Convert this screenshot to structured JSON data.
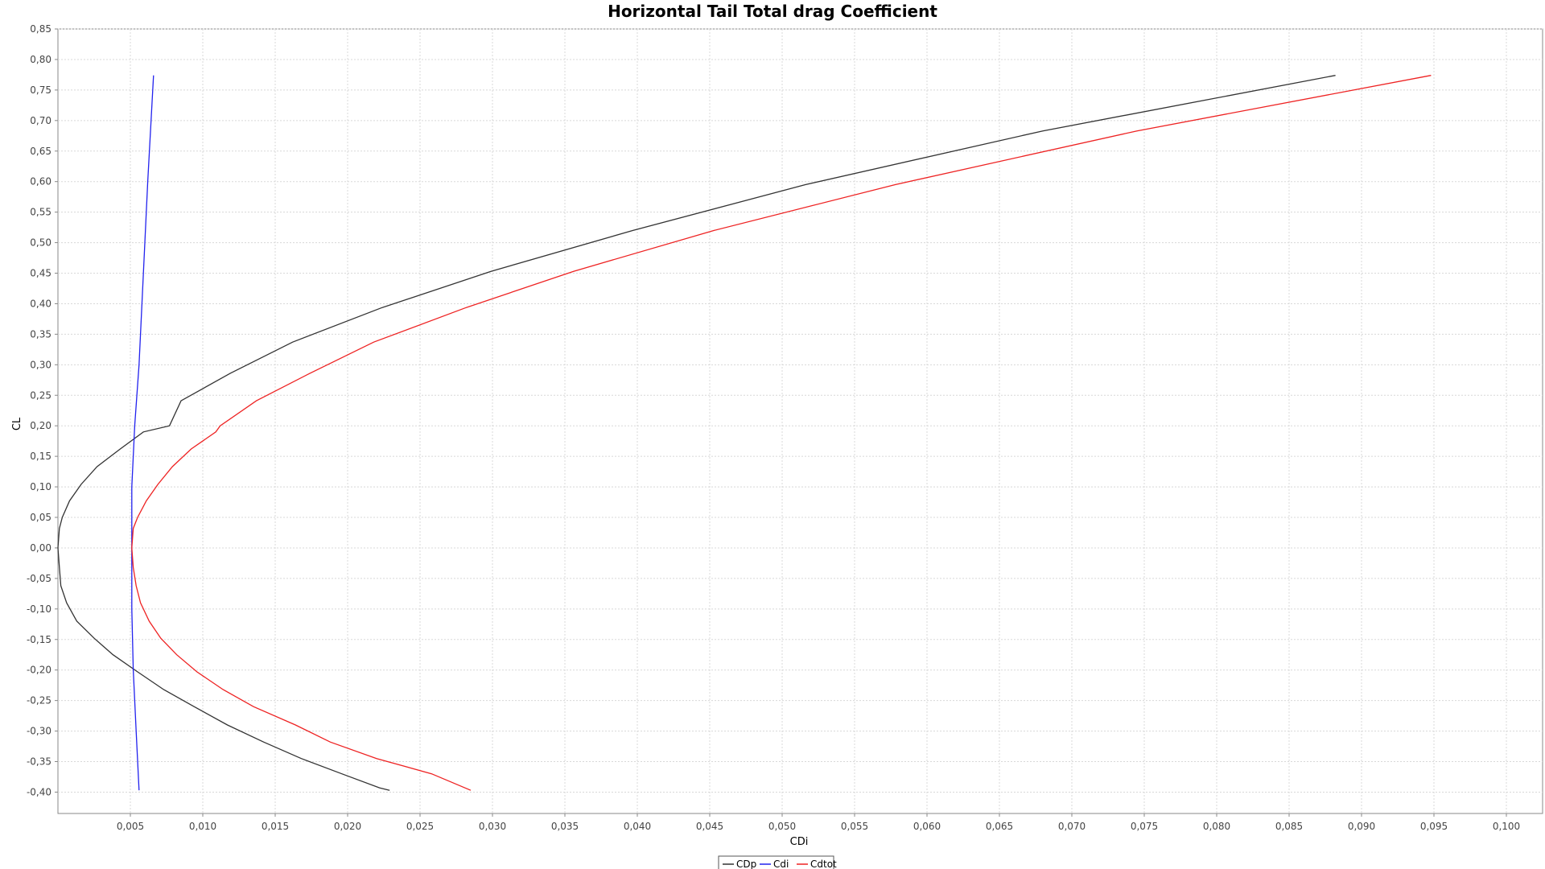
{
  "chart_data": {
    "type": "line",
    "title": "Horizontal Tail Total drag Coefficient",
    "xlabel": "CDi",
    "ylabel": "CL",
    "xlim": [
      0.0,
      0.1025
    ],
    "ylim": [
      -0.435,
      0.85
    ],
    "x_ticks": [
      "0,005",
      "0,010",
      "0,015",
      "0,020",
      "0,025",
      "0,030",
      "0,035",
      "0,040",
      "0,045",
      "0,050",
      "0,055",
      "0,060",
      "0,065",
      "0,070",
      "0,075",
      "0,080",
      "0,085",
      "0,090",
      "0,095",
      "0,100"
    ],
    "x_tick_values": [
      0.005,
      0.01,
      0.015,
      0.02,
      0.025,
      0.03,
      0.035,
      0.04,
      0.045,
      0.05,
      0.055,
      0.06,
      0.065,
      0.07,
      0.075,
      0.08,
      0.085,
      0.09,
      0.095,
      0.1
    ],
    "y_ticks": [
      "0,85",
      "0,80",
      "0,75",
      "0,70",
      "0,65",
      "0,60",
      "0,55",
      "0,50",
      "0,45",
      "0,40",
      "0,35",
      "0,30",
      "0,25",
      "0,20",
      "0,15",
      "0,10",
      "0,05",
      "0,00",
      "-0,05",
      "-0,10",
      "-0,15",
      "-0,20",
      "-0,25",
      "-0,30",
      "-0,35",
      "-0,40"
    ],
    "y_tick_values": [
      0.85,
      0.8,
      0.75,
      0.7,
      0.65,
      0.6,
      0.55,
      0.5,
      0.45,
      0.4,
      0.35,
      0.3,
      0.25,
      0.2,
      0.15,
      0.1,
      0.05,
      0.0,
      -0.05,
      -0.1,
      -0.15,
      -0.2,
      -0.25,
      -0.3,
      -0.35,
      -0.4
    ],
    "grid": true,
    "legend_position": "bottom-center",
    "series": [
      {
        "name": "CDp",
        "color": "#333333",
        "points": [
          [
            0.0229,
            -0.397
          ],
          [
            0.0222,
            -0.393
          ],
          [
            0.0196,
            -0.37
          ],
          [
            0.0168,
            -0.345
          ],
          [
            0.0142,
            -0.318
          ],
          [
            0.0117,
            -0.29
          ],
          [
            0.0094,
            -0.26
          ],
          [
            0.0073,
            -0.232
          ],
          [
            0.0055,
            -0.203
          ],
          [
            0.0038,
            -0.175
          ],
          [
            0.0025,
            -0.148
          ],
          [
            0.0013,
            -0.12
          ],
          [
            0.0006,
            -0.09
          ],
          [
            0.0002,
            -0.062
          ],
          [
            0.0001,
            -0.032
          ],
          [
            0.0,
            0.0
          ],
          [
            0.0001,
            0.032
          ],
          [
            0.0003,
            0.05
          ],
          [
            0.0008,
            0.077
          ],
          [
            0.0016,
            0.104
          ],
          [
            0.0027,
            0.133
          ],
          [
            0.0043,
            0.162
          ],
          [
            0.0059,
            0.19
          ],
          [
            0.0077,
            0.2
          ],
          [
            0.0085,
            0.241
          ],
          [
            0.0119,
            0.286
          ],
          [
            0.0162,
            0.337
          ],
          [
            0.0223,
            0.393
          ],
          [
            0.0299,
            0.453
          ],
          [
            0.0397,
            0.52
          ],
          [
            0.0516,
            0.595
          ],
          [
            0.068,
            0.683
          ],
          [
            0.0882,
            0.774
          ]
        ]
      },
      {
        "name": "Cdi",
        "color": "#2222ee",
        "points": [
          [
            0.0056,
            -0.397
          ],
          [
            0.0054,
            -0.3
          ],
          [
            0.0052,
            -0.2
          ],
          [
            0.0051,
            -0.1
          ],
          [
            0.0051,
            0.0
          ],
          [
            0.0051,
            0.1
          ],
          [
            0.0053,
            0.2
          ],
          [
            0.0056,
            0.3
          ],
          [
            0.0058,
            0.4
          ],
          [
            0.006,
            0.5
          ],
          [
            0.0062,
            0.6
          ],
          [
            0.0066,
            0.774
          ]
        ]
      },
      {
        "name": "Cdtot",
        "color": "#ee2222",
        "points": [
          [
            0.0285,
            -0.397
          ],
          [
            0.0258,
            -0.37
          ],
          [
            0.022,
            -0.345
          ],
          [
            0.0188,
            -0.318
          ],
          [
            0.0164,
            -0.29
          ],
          [
            0.0135,
            -0.26
          ],
          [
            0.0114,
            -0.232
          ],
          [
            0.0096,
            -0.203
          ],
          [
            0.0082,
            -0.175
          ],
          [
            0.0071,
            -0.148
          ],
          [
            0.0063,
            -0.12
          ],
          [
            0.0057,
            -0.09
          ],
          [
            0.0054,
            -0.062
          ],
          [
            0.0052,
            -0.032
          ],
          [
            0.0051,
            0.0
          ],
          [
            0.0052,
            0.032
          ],
          [
            0.0055,
            0.05
          ],
          [
            0.0061,
            0.077
          ],
          [
            0.0069,
            0.104
          ],
          [
            0.0079,
            0.133
          ],
          [
            0.0092,
            0.162
          ],
          [
            0.0109,
            0.19
          ],
          [
            0.0112,
            0.2
          ],
          [
            0.0137,
            0.241
          ],
          [
            0.0174,
            0.286
          ],
          [
            0.0218,
            0.337
          ],
          [
            0.0281,
            0.393
          ],
          [
            0.0356,
            0.453
          ],
          [
            0.0453,
            0.52
          ],
          [
            0.0578,
            0.595
          ],
          [
            0.0745,
            0.683
          ],
          [
            0.0948,
            0.774
          ]
        ]
      }
    ]
  }
}
